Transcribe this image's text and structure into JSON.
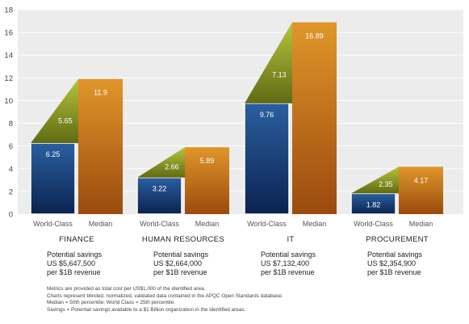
{
  "chart_data": {
    "type": "bar",
    "ylim": [
      0,
      18
    ],
    "yticks": [
      0,
      2,
      4,
      6,
      8,
      10,
      12,
      14,
      16,
      18
    ],
    "series_labels": [
      "World-Class",
      "Median"
    ],
    "groups": [
      {
        "name": "FINANCE",
        "world_class": 6.25,
        "median": 11.9,
        "difference": 5.65,
        "savings_lines": [
          "Potential savings",
          "US $5,647,500",
          "per $1B revenue"
        ]
      },
      {
        "name": "HUMAN RESOURCES",
        "world_class": 3.22,
        "median": 5.89,
        "difference": 2.66,
        "savings_lines": [
          "Potential savings",
          "US $2,664,000",
          "per $1B revenue"
        ]
      },
      {
        "name": "IT",
        "world_class": 9.76,
        "median": 16.89,
        "difference": 7.13,
        "savings_lines": [
          "Potential savings",
          "US $7,132,400",
          "per $1B revenue"
        ]
      },
      {
        "name": "PROCUREMENT",
        "world_class": 1.82,
        "median": 4.17,
        "difference": 2.35,
        "savings_lines": [
          "Potential savings",
          "US $2,354,900",
          "per $1B revenue"
        ]
      }
    ],
    "colors": {
      "world_class_top": "#2b5fa0",
      "world_class_bottom": "#0b2350",
      "median_top": "#e0962a",
      "median_bottom": "#9a4b0e",
      "triangle_top": "#b8c43a",
      "triangle_bottom": "#5f6b14",
      "plot_bg": "#ececec"
    }
  },
  "footnotes": [
    "Metrics are provided as total cost per US$1,000 of the identified area.",
    "Charts represent blinded, normalized, validated data contained in the APQC Open Standards database.",
    "Median = 50th percentile; World Class = 25th percentile.",
    "Savings = Potential savings available to a $1 Billion organization in the identified areas."
  ]
}
